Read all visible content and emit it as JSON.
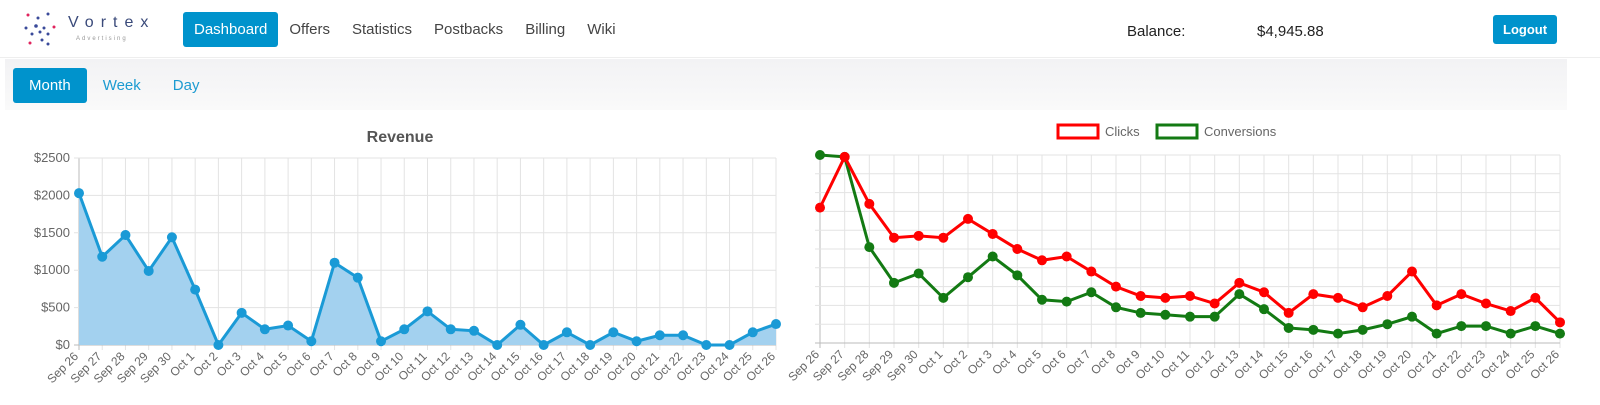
{
  "header": {
    "logo_name": "Vortex",
    "logo_sub": "Advertising",
    "nav": [
      {
        "label": "Dashboard",
        "active": true
      },
      {
        "label": "Offers"
      },
      {
        "label": "Statistics"
      },
      {
        "label": "Postbacks"
      },
      {
        "label": "Billing"
      },
      {
        "label": "Wiki"
      }
    ],
    "balance_label": "Balance:",
    "balance_value": "$4,945.88",
    "logout_label": "Logout"
  },
  "periods": [
    {
      "label": "Month",
      "active": true
    },
    {
      "label": "Week"
    },
    {
      "label": "Day"
    }
  ],
  "colors": {
    "accent": "#0093cc",
    "revenue": "#1a9ad6",
    "revenue_fill": "#a3d1ef",
    "clicks": "#ff0000",
    "conversions": "#137a13"
  },
  "chart_data": [
    {
      "type": "area",
      "title": "Revenue",
      "ylim": [
        0,
        2500
      ],
      "yticks": [
        "$0",
        "$500",
        "$1000",
        "$1500",
        "$2000",
        "$2500"
      ],
      "categories": [
        "Sep 26",
        "Sep 27",
        "Sep 28",
        "Sep 29",
        "Sep 30",
        "Oct 1",
        "Oct 2",
        "Oct 3",
        "Oct 4",
        "Oct 5",
        "Oct 6",
        "Oct 7",
        "Oct 8",
        "Oct 9",
        "Oct 10",
        "Oct 11",
        "Oct 12",
        "Oct 13",
        "Oct 14",
        "Oct 15",
        "Oct 16",
        "Oct 17",
        "Oct 18",
        "Oct 19",
        "Oct 20",
        "Oct 21",
        "Oct 22",
        "Oct 23",
        "Oct 24",
        "Oct 25",
        "Oct 26"
      ],
      "values": [
        2030,
        1180,
        1470,
        990,
        1440,
        740,
        0,
        430,
        210,
        260,
        50,
        1100,
        900,
        50,
        210,
        450,
        210,
        190,
        0,
        270,
        0,
        170,
        0,
        170,
        50,
        130,
        130,
        0,
        0,
        170,
        280
      ]
    },
    {
      "type": "line",
      "ylim": [
        0,
        10
      ],
      "legend": "top",
      "categories": [
        "Sep 26",
        "Sep 27",
        "Sep 28",
        "Sep 29",
        "Sep 30",
        "Oct 1",
        "Oct 2",
        "Oct 3",
        "Oct 4",
        "Oct 5",
        "Oct 6",
        "Oct 7",
        "Oct 8",
        "Oct 9",
        "Oct 10",
        "Oct 11",
        "Oct 12",
        "Oct 13",
        "Oct 14",
        "Oct 15",
        "Oct 16",
        "Oct 17",
        "Oct 18",
        "Oct 19",
        "Oct 20",
        "Oct 21",
        "Oct 22",
        "Oct 23",
        "Oct 24",
        "Oct 25",
        "Oct 26"
      ],
      "series": [
        {
          "name": "Clicks",
          "values": [
            7.2,
            9.9,
            7.4,
            5.6,
            5.7,
            5.6,
            6.6,
            5.8,
            5.0,
            4.4,
            4.6,
            3.8,
            3.0,
            2.5,
            2.4,
            2.5,
            2.1,
            3.2,
            2.7,
            1.6,
            2.6,
            2.4,
            1.9,
            2.5,
            3.8,
            2.0,
            2.6,
            2.1,
            1.7,
            2.4,
            1.1
          ]
        },
        {
          "name": "Conversions",
          "values": [
            10,
            9.9,
            5.1,
            3.2,
            3.7,
            2.4,
            3.5,
            4.6,
            3.6,
            2.3,
            2.2,
            2.7,
            1.9,
            1.6,
            1.5,
            1.4,
            1.4,
            2.6,
            1.8,
            0.8,
            0.7,
            0.5,
            0.7,
            1.0,
            1.4,
            0.5,
            0.9,
            0.9,
            0.5,
            0.9,
            0.5
          ]
        }
      ]
    }
  ]
}
